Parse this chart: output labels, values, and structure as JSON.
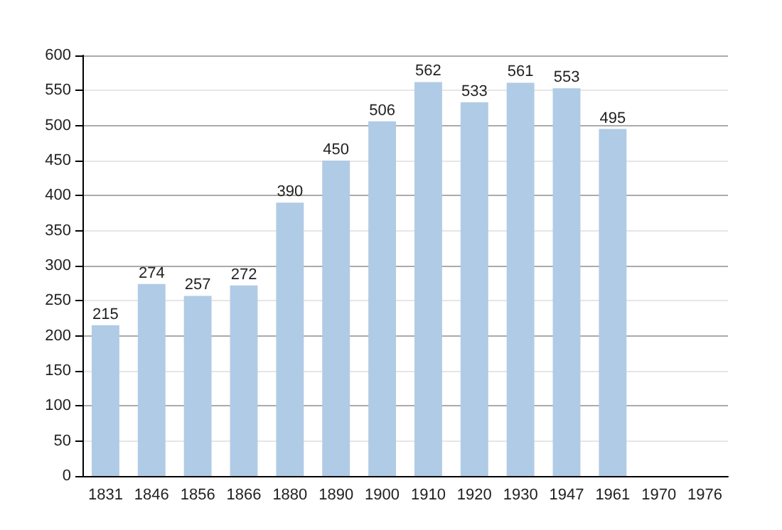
{
  "chart_data": {
    "type": "bar",
    "categories": [
      "1831",
      "1846",
      "1856",
      "1866",
      "1880",
      "1890",
      "1900",
      "1910",
      "1920",
      "1930",
      "1947",
      "1961",
      "1970",
      "1976"
    ],
    "values": [
      215,
      274,
      257,
      272,
      390,
      450,
      506,
      562,
      533,
      561,
      553,
      495,
      null,
      null
    ],
    "color": "#b0cbe5",
    "ylim": [
      0,
      600
    ],
    "yticks": [
      0,
      50,
      100,
      150,
      200,
      250,
      300,
      350,
      400,
      450,
      500,
      550,
      600
    ],
    "grid": "y",
    "data_labels": true
  }
}
